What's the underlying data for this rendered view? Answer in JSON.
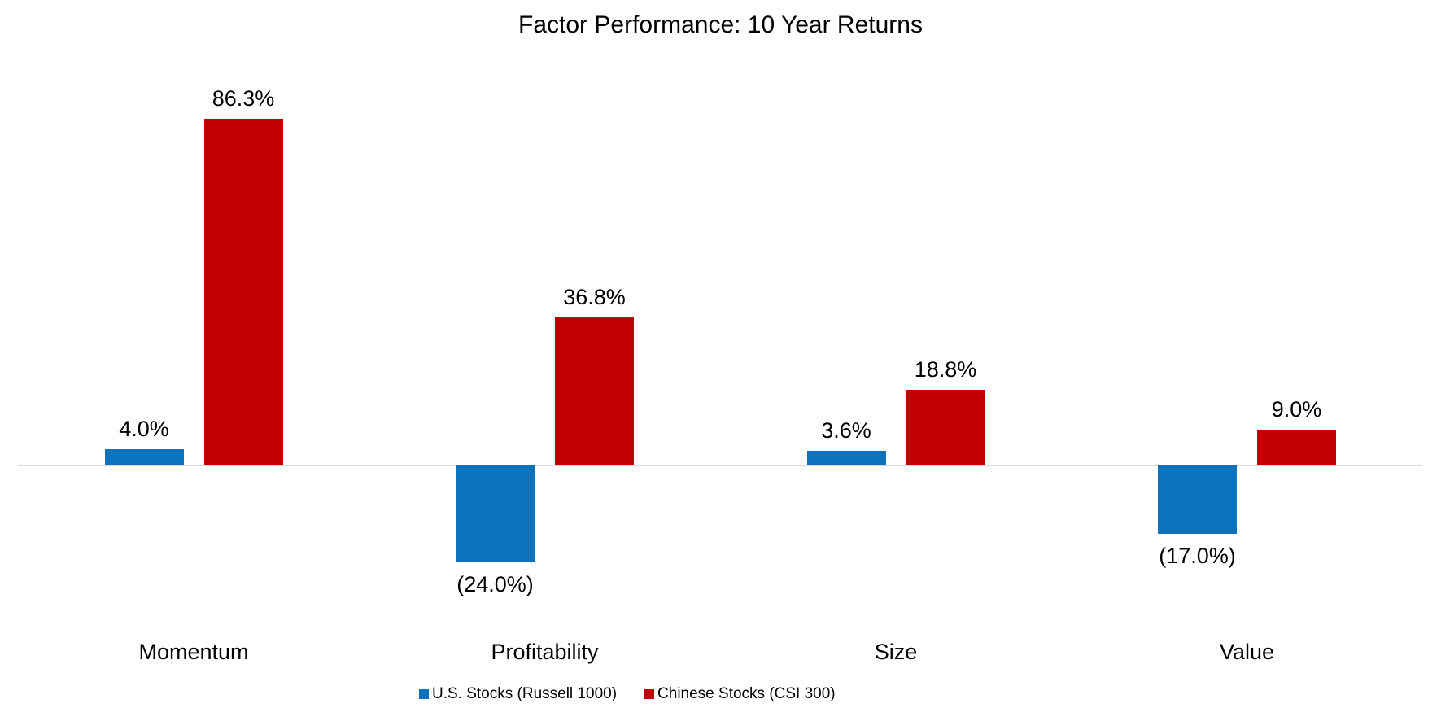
{
  "title": "Factor Performance: 10 Year Returns",
  "colors": {
    "us_series": "#0d72bc",
    "china_series": "#c00000",
    "axis_line": "#d9d9d9",
    "text": "#000000",
    "background": "#ffffff"
  },
  "legend": {
    "items": [
      {
        "label": "U.S. Stocks (Russell 1000)",
        "color": "#0d72bc"
      },
      {
        "label": "Chinese Stocks (CSI 300)",
        "color": "#c00000"
      }
    ]
  },
  "chart_data": {
    "type": "bar",
    "title": "Factor Performance: 10 Year Returns",
    "categories": [
      "Momentum",
      "Profitability",
      "Size",
      "Value"
    ],
    "series": [
      {
        "name": "U.S. Stocks (Russell 1000)",
        "color": "#0d72bc",
        "values": [
          4.0,
          -24.0,
          3.6,
          -17.0
        ],
        "data_labels": [
          "4.0%",
          "(24.0%)",
          "3.6%",
          "(17.0%)"
        ]
      },
      {
        "name": "Chinese Stocks (CSI 300)",
        "color": "#c00000",
        "values": [
          86.3,
          36.8,
          18.8,
          9.0
        ],
        "data_labels": [
          "86.3%",
          "36.8%",
          "18.8%",
          "9.0%"
        ]
      }
    ],
    "ylabel": "",
    "xlabel": "",
    "ylim": [
      -30,
      90
    ],
    "grid": false,
    "y_axis_visible": false,
    "baseline_at_zero": true,
    "legend_position": "bottom",
    "value_format": "percent, one decimal, negatives in parentheses"
  }
}
